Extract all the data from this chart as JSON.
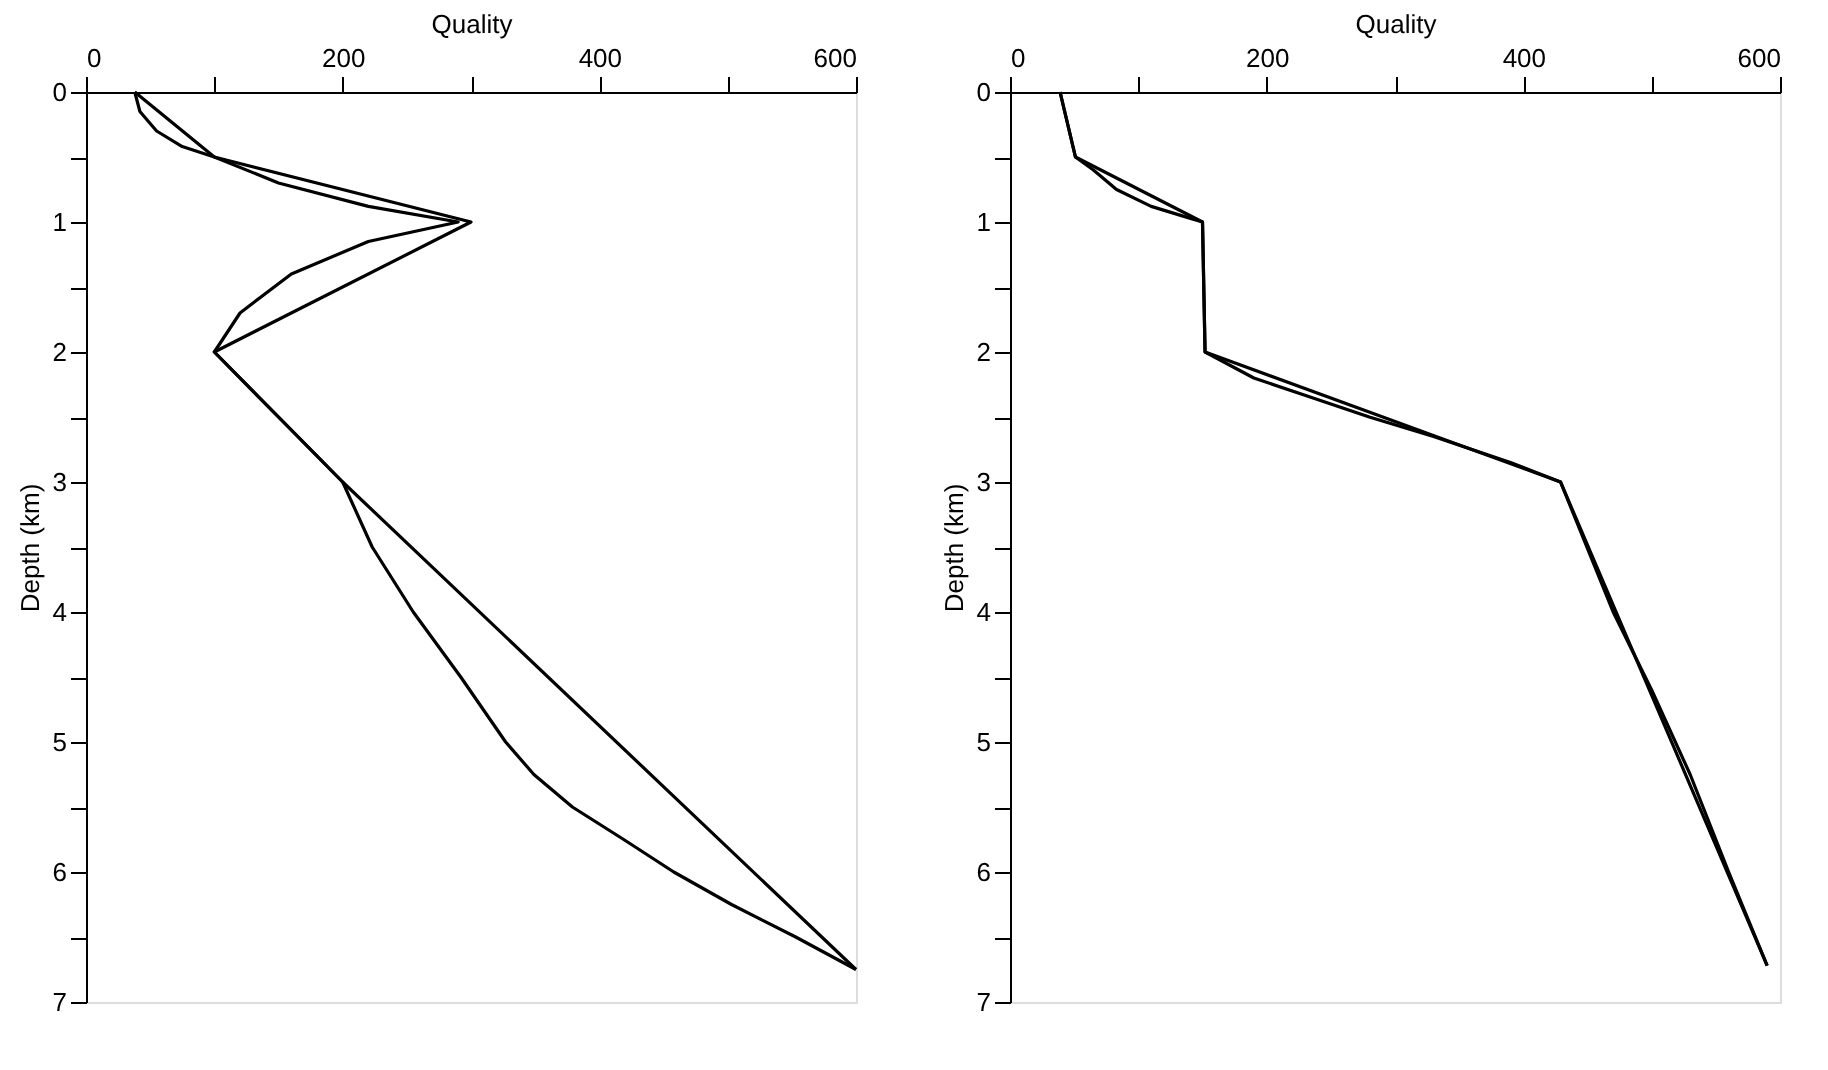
{
  "chart_data": [
    {
      "type": "line",
      "xlabel": "Quality",
      "ylabel": "Depth (km)",
      "xlim": [
        0,
        600
      ],
      "ylim": [
        7,
        0
      ],
      "xticks": [
        0,
        {
          "value": 100,
          "label": null
        },
        200,
        {
          "value": 300,
          "label": null
        },
        400,
        {
          "value": 500,
          "label": null
        },
        600
      ],
      "yticks": [
        0,
        {
          "value": 0.5,
          "label": null
        },
        1,
        {
          "value": 1.5,
          "label": null
        },
        2,
        {
          "value": 2.5,
          "label": null
        },
        3,
        {
          "value": 3.5,
          "label": null
        },
        4,
        {
          "value": 4.5,
          "label": null
        },
        5,
        {
          "value": 5.5,
          "label": null
        },
        6,
        {
          "value": 6.5,
          "label": null
        },
        7
      ],
      "grid": false,
      "marker": "none",
      "line_style": "solid",
      "series": [
        {
          "color": "#000000",
          "x": [
            38,
            100,
            300,
            100,
            200,
            600
          ],
          "values": [
            0,
            0.5,
            1,
            2,
            3,
            6.75
          ]
        },
        {
          "color": "#000000",
          "x": [
            38,
            42,
            55,
            75,
            100,
            150,
            220,
            290,
            220,
            160,
            120,
            100,
            150,
            200,
            223,
            255,
            292,
            327,
            349,
            379,
            419,
            458,
            503,
            553,
            600
          ],
          "values": [
            0,
            0.15,
            0.3,
            0.42,
            0.5,
            0.7,
            0.88,
            1,
            1.15,
            1.4,
            1.7,
            2,
            2.5,
            3,
            3.5,
            4,
            4.5,
            5,
            5.25,
            5.5,
            5.75,
            6,
            6.25,
            6.5,
            6.75
          ]
        }
      ]
    },
    {
      "type": "line",
      "xlabel": "Quality",
      "ylabel": "Depth (km)",
      "xlim": [
        0,
        600
      ],
      "ylim": [
        7,
        0
      ],
      "xticks": [
        0,
        {
          "value": 100,
          "label": null
        },
        200,
        {
          "value": 300,
          "label": null
        },
        400,
        {
          "value": 500,
          "label": null
        },
        600
      ],
      "yticks": [
        0,
        {
          "value": 0.5,
          "label": null
        },
        1,
        {
          "value": 1.5,
          "label": null
        },
        2,
        {
          "value": 2.5,
          "label": null
        },
        3,
        {
          "value": 3.5,
          "label": null
        },
        4,
        {
          "value": 4.5,
          "label": null
        },
        5,
        {
          "value": 5.5,
          "label": null
        },
        6,
        {
          "value": 6.5,
          "label": null
        },
        7
      ],
      "grid": false,
      "marker": "none",
      "line_style": "solid",
      "series": [
        {
          "color": "#000000",
          "x": [
            39,
            51,
            150,
            152,
            429,
            590
          ],
          "values": [
            0,
            0.5,
            1,
            2,
            3,
            6.72
          ]
        },
        {
          "color": "#000000",
          "x": [
            39,
            51,
            65,
            83,
            110,
            140,
            150,
            152,
            190,
            235,
            280,
            330,
            390,
            429,
            470,
            500,
            530,
            560,
            590
          ],
          "values": [
            0,
            0.5,
            0.6,
            0.75,
            0.88,
            0.97,
            1,
            2,
            2.2,
            2.35,
            2.5,
            2.65,
            2.85,
            3,
            4,
            4.6,
            5.25,
            6,
            6.72
          ]
        }
      ]
    }
  ]
}
